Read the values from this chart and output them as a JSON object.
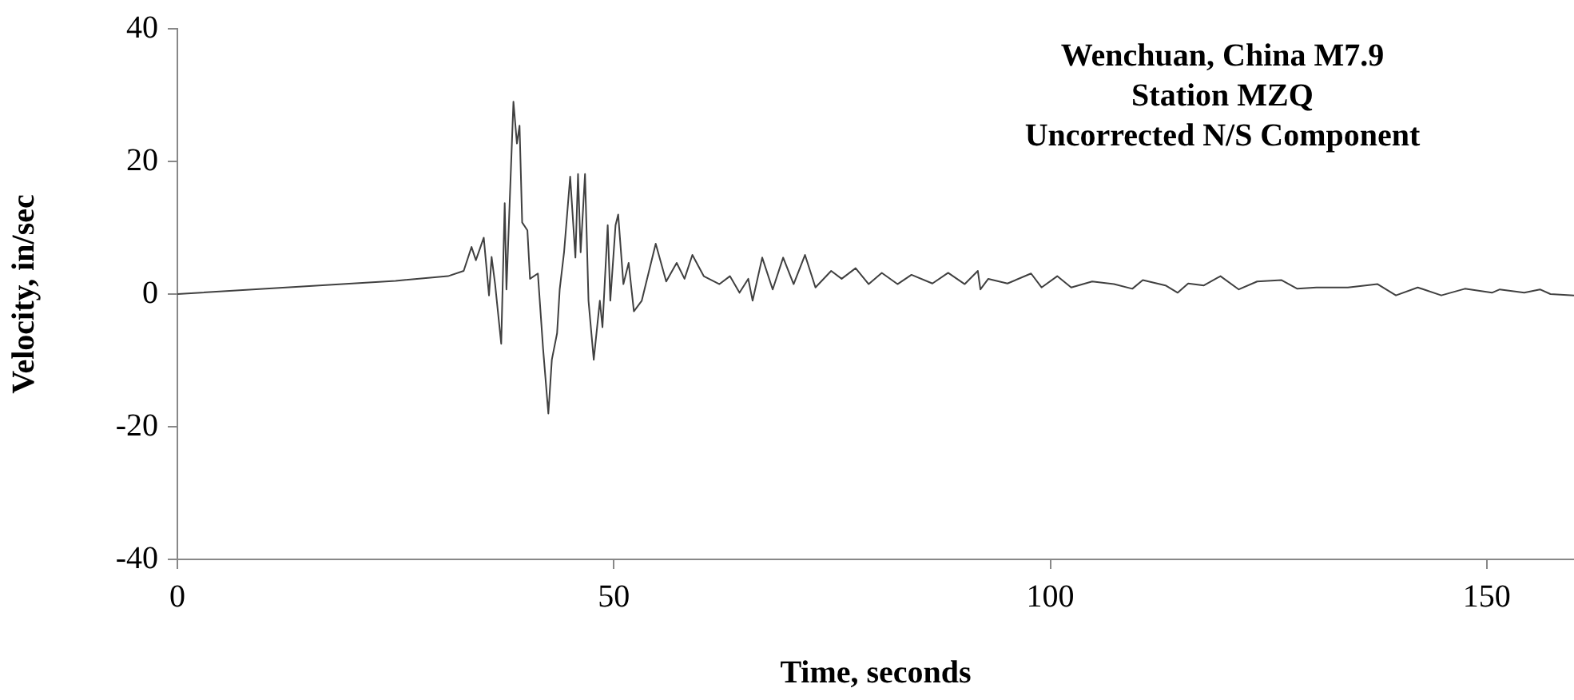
{
  "chart_data": {
    "type": "line",
    "xlabel": "Time, seconds",
    "ylabel": "Velocity, in/sec",
    "annotations": [
      "Wenchuan, China M7.9",
      "Station MZQ",
      "Uncorrected N/S Component"
    ],
    "xlim": [
      0,
      160
    ],
    "xticks": [
      0,
      50,
      100,
      150
    ],
    "ylim": [
      -40,
      40
    ],
    "yticks": [
      -40,
      -20,
      0,
      20,
      40
    ],
    "grid": false,
    "legend": false,
    "marker": "none",
    "line_style": "solid",
    "series": [
      {
        "color": "#404040",
        "x": [
          0,
          25,
          31.0,
          32.8,
          33.7,
          34.2,
          35.1,
          35.7,
          36.0,
          36.4,
          37.1,
          37.5,
          37.7,
          38.5,
          38.9,
          39.2,
          39.5,
          40.1,
          40.4,
          41.3,
          41.9,
          42.5,
          42.9,
          43.5,
          43.8,
          44.3,
          45.0,
          45.6,
          45.9,
          46.2,
          46.7,
          47.1,
          47.7,
          48.4,
          48.7,
          49.3,
          49.6,
          50.2,
          50.5,
          51.1,
          51.7,
          52.3,
          53.2,
          54.8,
          56.0,
          57.2,
          58.1,
          59.0,
          60.3,
          62.1,
          63.3,
          64.4,
          65.4,
          65.9,
          67.0,
          68.2,
          69.4,
          70.6,
          71.9,
          73.1,
          74.9,
          76.1,
          77.7,
          79.2,
          80.7,
          82.5,
          84.1,
          86.5,
          88.3,
          90.2,
          91.7,
          92.0,
          92.9,
          95.1,
          97.8,
          99.0,
          100.8,
          102.4,
          104.8,
          107.3,
          109.4,
          110.6,
          113.2,
          114.6,
          115.8,
          117.6,
          119.5,
          121.6,
          123.7,
          126.5,
          128.3,
          130.5,
          134.1,
          137.5,
          139.6,
          142.1,
          144.8,
          147.5,
          150.6,
          151.5,
          154.3,
          156.1,
          157.3,
          160
        ],
        "values": [
          0,
          2,
          2.7,
          3.5,
          7.1,
          5.1,
          8.5,
          -0.2,
          5.6,
          1.5,
          -7.5,
          13.7,
          0.7,
          29,
          22.7,
          25.4,
          10.8,
          9.6,
          2.3,
          3.1,
          -8.3,
          -18,
          -9.9,
          -5.9,
          0.7,
          6.3,
          17.7,
          5.5,
          18.1,
          6.3,
          18.1,
          -1,
          -9.9,
          -1,
          -5,
          10.4,
          -1,
          10.4,
          12,
          1.5,
          4.7,
          -2.6,
          -1,
          7.6,
          1.9,
          4.7,
          2.3,
          5.9,
          2.7,
          1.5,
          2.7,
          0.2,
          2.3,
          -1,
          5.5,
          0.7,
          5.5,
          1.5,
          5.9,
          1,
          3.5,
          2.3,
          3.9,
          1.5,
          3.2,
          1.5,
          2.9,
          1.6,
          3.2,
          1.5,
          3.5,
          0.7,
          2.3,
          1.6,
          3.1,
          1,
          2.7,
          1,
          1.9,
          1.5,
          0.8,
          2.1,
          1.3,
          0.2,
          1.6,
          1.3,
          2.7,
          0.7,
          1.9,
          2.1,
          0.8,
          1,
          1,
          1.5,
          -0.2,
          1,
          -0.2,
          0.8,
          0.2,
          0.7,
          0.2,
          0.7,
          0,
          -0.2
        ]
      }
    ]
  }
}
